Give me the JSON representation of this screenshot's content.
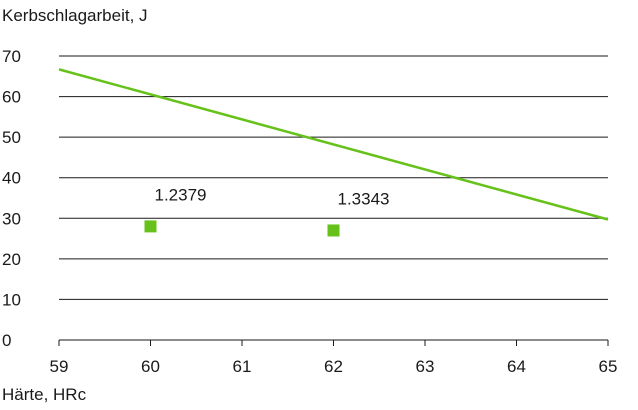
{
  "chart_data": {
    "type": "scatter",
    "xlabel": "Härte, HRc",
    "ylabel": "Kerbschlagarbeit, J",
    "xlim": [
      59,
      65
    ],
    "ylim": [
      0,
      70
    ],
    "x_ticks": [
      59,
      60,
      61,
      62,
      63,
      64,
      65
    ],
    "y_ticks": [
      0,
      10,
      20,
      30,
      40,
      50,
      60,
      70
    ],
    "grid": "horizontal",
    "colors": {
      "series": "#66c21a",
      "grid": "#1a1a1a",
      "text": "#1a1a1a"
    },
    "trend_line": {
      "points": [
        [
          59,
          66.7
        ],
        [
          65,
          29.7
        ]
      ]
    },
    "points": [
      {
        "x": 60,
        "y": 28,
        "label": "1.2379"
      },
      {
        "x": 62,
        "y": 27,
        "label": "1.3343"
      }
    ]
  }
}
